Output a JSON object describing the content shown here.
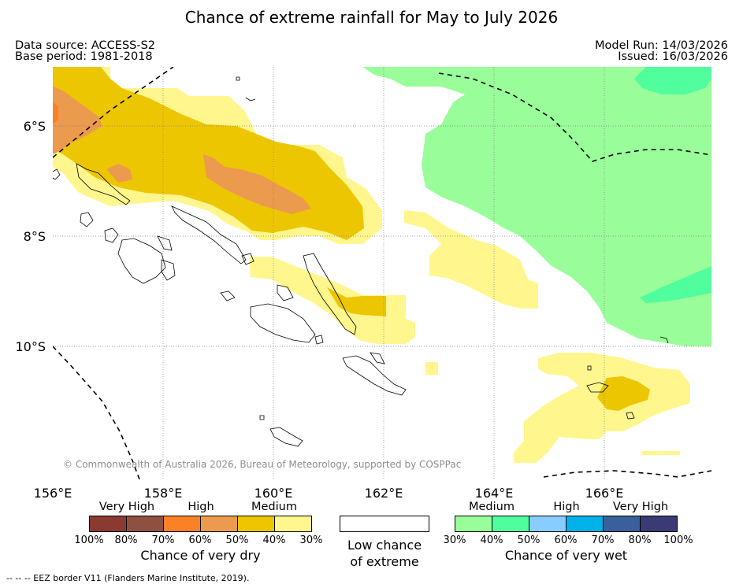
{
  "title": "Chance of extreme rainfall for May to July 2026",
  "meta": {
    "data_source": "Data source: ACCESS-S2",
    "base_period": "Base period: 1981-2018",
    "model_run": "Model Run: 14/03/2026",
    "issued": "Issued: 16/03/2026"
  },
  "map": {
    "lat_labels": [
      "6°S",
      "8°S",
      "10°S"
    ],
    "lon_labels": [
      "156°E",
      "158°E",
      "160°E",
      "162°E",
      "164°E",
      "166°E"
    ],
    "copyright": "© Commonwealth of Australia 2026, Bureau of Meteorology, supported by COSPPac"
  },
  "legend": {
    "dry": {
      "categories": [
        "Very High",
        "High",
        "Medium"
      ],
      "percents": [
        "100%",
        "80%",
        "70%",
        "60%",
        "50%",
        "40%",
        "30%"
      ],
      "colors": [
        "#8b3a32",
        "#8e5140",
        "#fb8127",
        "#ec9a4d",
        "#ecc600",
        "#fff68e"
      ],
      "caption": "Chance of very dry"
    },
    "low": {
      "caption_line1": "Low chance",
      "caption_line2": "of extreme",
      "color": "#ffffff"
    },
    "wet": {
      "categories": [
        "Medium",
        "High",
        "Very High"
      ],
      "percents": [
        "30%",
        "40%",
        "50%",
        "60%",
        "70%",
        "80%",
        "100%"
      ],
      "colors": [
        "#99fe99",
        "#50fe9e",
        "#88cdff",
        "#00b1ea",
        "#39609a",
        "#3b3a75"
      ],
      "caption": "Chance of very wet"
    }
  },
  "footnote": "--  --  -- EEZ border V11 (Flanders Marine Institute, 2019)."
}
